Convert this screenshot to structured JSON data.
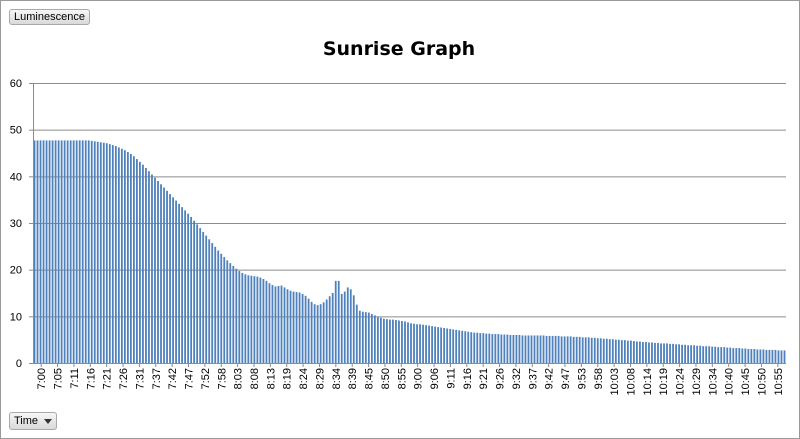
{
  "controls": {
    "value_field": "Luminescence",
    "axis_field": "Time"
  },
  "chart_data": {
    "type": "bar",
    "title": "Sunrise Graph",
    "xlabel": "",
    "ylabel": "",
    "ylim": [
      0,
      60
    ],
    "y_ticks": [
      0,
      10,
      20,
      30,
      40,
      50,
      60
    ],
    "grid": true,
    "legend": "none",
    "bar_color": "#4f81bd",
    "x_tick_labels": [
      "7:00",
      "7:05",
      "7:11",
      "7:16",
      "7:21",
      "7:26",
      "7:31",
      "7:37",
      "7:42",
      "7:47",
      "7:52",
      "7:58",
      "8:03",
      "8:08",
      "8:13",
      "8:19",
      "8:24",
      "8:29",
      "8:34",
      "8:39",
      "8:45",
      "8:50",
      "8:55",
      "9:00",
      "9:06",
      "9:11",
      "9:16",
      "9:21",
      "9:26",
      "9:32",
      "9:37",
      "9:42",
      "9:47",
      "9:53",
      "9:58",
      "10:03",
      "10:08",
      "10:14",
      "10:19",
      "10:24",
      "10:29",
      "10:34",
      "10:40",
      "10:45",
      "10:50",
      "10:55"
    ],
    "values": [
      47.7,
      47.7,
      47.7,
      47.7,
      47.7,
      47.7,
      47.7,
      47.7,
      47.7,
      47.7,
      47.7,
      47.7,
      47.7,
      47.7,
      47.7,
      47.7,
      47.7,
      47.7,
      47.7,
      47.6,
      47.5,
      47.4,
      47.3,
      47.2,
      47.1,
      46.9,
      46.7,
      46.5,
      46.2,
      45.9,
      45.6,
      45.2,
      44.8,
      44.3,
      43.7,
      43.1,
      42.5,
      41.8,
      41.1,
      40.4,
      39.7,
      39.0,
      38.3,
      37.6,
      36.9,
      36.2,
      35.5,
      34.8,
      34.1,
      33.4,
      32.7,
      32.0,
      31.3,
      30.5,
      29.7,
      28.9,
      28.1,
      27.3,
      26.5,
      25.7,
      24.9,
      24.1,
      23.4,
      22.7,
      22.0,
      21.4,
      20.8,
      20.2,
      19.7,
      19.3,
      19.0,
      18.8,
      18.7,
      18.6,
      18.5,
      18.3,
      18.0,
      17.6,
      17.1,
      16.7,
      16.4,
      16.5,
      16.6,
      16.2,
      15.8,
      15.5,
      15.3,
      15.2,
      15.1,
      14.8,
      14.4,
      13.8,
      13.1,
      12.6,
      12.4,
      12.6,
      13.0,
      13.6,
      14.3,
      15.0,
      17.6,
      17.6,
      14.8,
      15.3,
      16.2,
      15.8,
      14.5,
      12.5,
      11.2,
      11.0,
      10.9,
      10.8,
      10.5,
      10.2,
      9.9,
      9.7,
      9.5,
      9.4,
      9.3,
      9.3,
      9.2,
      9.1,
      9.0,
      8.9,
      8.7,
      8.5,
      8.4,
      8.3,
      8.3,
      8.2,
      8.1,
      8.0,
      7.9,
      7.8,
      7.7,
      7.6,
      7.5,
      7.4,
      7.3,
      7.2,
      7.1,
      7.0,
      6.9,
      6.8,
      6.7,
      6.6,
      6.5,
      6.5,
      6.4,
      6.4,
      6.3,
      6.3,
      6.2,
      6.2,
      6.2,
      6.1,
      6.1,
      6.1,
      6.0,
      6.0,
      6.0,
      6.0,
      5.9,
      5.9,
      5.9,
      5.9,
      5.9,
      5.9,
      5.9,
      5.9,
      5.8,
      5.8,
      5.8,
      5.8,
      5.8,
      5.7,
      5.7,
      5.7,
      5.7,
      5.6,
      5.6,
      5.6,
      5.5,
      5.5,
      5.5,
      5.4,
      5.4,
      5.3,
      5.3,
      5.2,
      5.2,
      5.1,
      5.1,
      5.0,
      5.0,
      4.9,
      4.9,
      4.8,
      4.8,
      4.7,
      4.6,
      4.6,
      4.5,
      4.5,
      4.4,
      4.4,
      4.3,
      4.3,
      4.2,
      4.2,
      4.2,
      4.1,
      4.1,
      4.0,
      4.0,
      3.9,
      3.9,
      3.8,
      3.8,
      3.8,
      3.7,
      3.7,
      3.6,
      3.6,
      3.6,
      3.5,
      3.5,
      3.4,
      3.4,
      3.4,
      3.3,
      3.3,
      3.2,
      3.2,
      3.2,
      3.1,
      3.1,
      3.0,
      3.0,
      3.0,
      2.9,
      2.9,
      2.9,
      2.8,
      2.8,
      2.8,
      2.8,
      2.7,
      2.7,
      2.7
    ]
  }
}
